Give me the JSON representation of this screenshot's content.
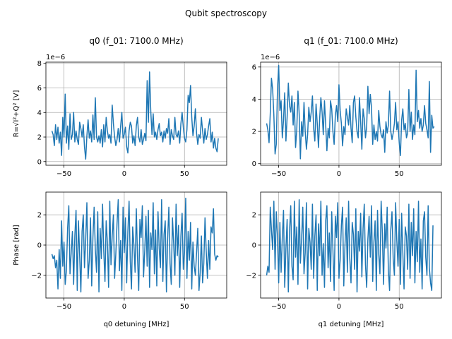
{
  "figure": {
    "title": "Qubit spectroscopy",
    "amplitude_ylabel": "R=√I²+Q² [V]",
    "phase_ylabel": "Phase [rad]"
  },
  "chart_data": [
    {
      "type": "line",
      "title": "q0 (f_01: 7100.0 MHz)",
      "xlabel": "",
      "ylabel": "R=√I²+Q² [V]",
      "offset_text": "1e−6",
      "grid": true,
      "xlim": [
        -65,
        85
      ],
      "ylim": [
        -0.3,
        8.1
      ],
      "xticks": [
        -50,
        0,
        50
      ],
      "yticks": [
        0,
        2,
        4,
        6,
        8
      ],
      "color": "#1f77b4",
      "x_start": -60,
      "x_step": 1,
      "values": [
        2.5,
        2.2,
        1.3,
        3.0,
        1.8,
        2.8,
        1.5,
        2.4,
        0.5,
        3.6,
        2.0,
        5.5,
        1.5,
        2.9,
        1.0,
        3.9,
        1.8,
        2.2,
        4.0,
        1.6,
        2.5,
        1.8,
        1.4,
        3.2,
        2.7,
        2.0,
        3.0,
        1.2,
        0.2,
        2.1,
        3.4,
        1.9,
        2.5,
        1.6,
        3.8,
        1.8,
        5.2,
        2.0,
        1.6,
        2.1,
        1.5,
        2.6,
        1.2,
        3.0,
        1.6,
        3.6,
        2.5,
        1.9,
        2.2,
        1.5,
        4.6,
        3.1,
        2.0,
        1.3,
        1.8,
        2.7,
        1.6,
        2.9,
        4.0,
        1.9,
        2.2,
        2.8,
        1.2,
        0.7,
        2.5,
        3.2,
        2.9,
        1.5,
        2.1,
        1.3,
        2.9,
        3.6,
        2.0,
        1.6,
        2.6,
        1.4,
        1.8,
        2.3,
        1.7,
        6.6,
        3.2,
        7.3,
        4.1,
        2.2,
        3.9,
        2.0,
        2.4,
        1.8,
        2.6,
        3.1,
        2.1,
        2.4,
        1.6,
        2.5,
        1.9,
        2.7,
        2.3,
        3.5,
        1.4,
        2.6,
        2.1,
        1.8,
        3.6,
        2.2,
        2.0,
        2.5,
        1.5,
        3.1,
        4.0,
        2.8,
        1.9,
        1.6,
        2.6,
        5.4,
        4.8,
        6.2,
        3.6,
        2.1,
        2.9,
        4.3,
        2.3,
        1.4,
        2.2,
        1.9,
        3.6,
        2.5,
        1.5,
        2.7,
        1.8,
        2.2,
        2.9,
        3.5,
        1.6,
        2.4,
        1.1,
        1.9,
        1.1,
        0.8,
        1.9
      ]
    },
    {
      "type": "line",
      "title": "q1 (f_01: 7100.0 MHz)",
      "xlabel": "",
      "ylabel": "",
      "offset_text": "1e−6",
      "grid": true,
      "xlim": [
        -65,
        85
      ],
      "ylim": [
        -0.1,
        6.3
      ],
      "xticks": [
        -50,
        0,
        50
      ],
      "yticks": [
        0,
        2,
        4,
        6
      ],
      "color": "#1f77b4",
      "x_start": -60,
      "x_step": 1,
      "values": [
        2.5,
        2.1,
        1.3,
        3.1,
        5.3,
        4.6,
        3.0,
        0.6,
        1.2,
        4.6,
        6.1,
        3.3,
        3.9,
        1.6,
        2.7,
        4.4,
        1.4,
        2.9,
        5.0,
        3.6,
        3.2,
        4.2,
        2.4,
        3.8,
        1.0,
        2.1,
        4.5,
        3.1,
        0.3,
        2.6,
        1.7,
        3.8,
        2.0,
        0.9,
        1.8,
        3.5,
        2.6,
        3.2,
        4.2,
        2.2,
        1.4,
        3.7,
        2.5,
        1.0,
        2.8,
        4.1,
        3.2,
        1.8,
        3.9,
        2.4,
        0.8,
        2.2,
        1.6,
        3.9,
        3.4,
        2.0,
        1.2,
        3.0,
        3.6,
        2.6,
        4.9,
        3.3,
        2.5,
        1.1,
        2.3,
        1.8,
        3.4,
        2.9,
        2.4,
        3.6,
        2.2,
        1.3,
        3.8,
        4.2,
        2.9,
        2.0,
        1.6,
        4.1,
        2.6,
        0.9,
        3.4,
        2.8,
        1.6,
        2.3,
        4.8,
        3.1,
        4.3,
        3.5,
        1.2,
        2.4,
        1.5,
        2.0,
        1.4,
        3.3,
        2.3,
        1.8,
        1.6,
        2.1,
        0.7,
        2.6,
        1.9,
        2.4,
        4.5,
        2.0,
        1.5,
        1.9,
        2.5,
        3.8,
        2.1,
        2.6,
        1.3,
        0.5,
        2.7,
        3.4,
        2.1,
        2.5,
        1.6,
        1.9,
        4.6,
        2.0,
        3.2,
        1.5,
        2.4,
        1.8,
        5.8,
        2.6,
        3.3,
        2.2,
        2.8,
        2.0,
        2.4,
        3.6,
        2.5,
        2.1,
        1.6,
        5.1,
        0.7,
        3.0,
        2.2,
        2.3
      ]
    },
    {
      "type": "line",
      "title": "",
      "xlabel": "q0 detuning [MHz]",
      "ylabel": "Phase [rad]",
      "grid": true,
      "xlim": [
        -65,
        85
      ],
      "ylim": [
        -3.5,
        3.5
      ],
      "xticks": [
        -50,
        0,
        50
      ],
      "yticks": [
        -2,
        0,
        2
      ],
      "color": "#1f77b4",
      "x_start": -60,
      "x_step": 1,
      "values": [
        -0.6,
        -0.9,
        -0.7,
        -1.5,
        -1.0,
        -2.9,
        -0.3,
        -2.2,
        1.6,
        -1.4,
        0.2,
        -2.6,
        -1.7,
        1.1,
        2.6,
        -1.9,
        -0.5,
        0.9,
        -2.6,
        0.6,
        2.3,
        -3.0,
        1.6,
        -0.7,
        -3.1,
        0.9,
        2.0,
        -1.5,
        0.3,
        2.8,
        -2.2,
        -1.0,
        1.8,
        -2.7,
        0.5,
        2.5,
        -0.3,
        -1.8,
        2.2,
        -3.1,
        1.1,
        -0.9,
        2.7,
        -0.4,
        -2.4,
        1.6,
        0.2,
        -2.8,
        2.9,
        -1.3,
        0.6,
        2.0,
        -2.2,
        -0.6,
        1.4,
        3.0,
        -1.7,
        0.3,
        -3.0,
        2.5,
        -0.5,
        1.8,
        -2.5,
        0.9,
        2.9,
        -1.1,
        -2.9,
        1.2,
        0.0,
        -1.8,
        2.4,
        -0.8,
        -3.0,
        1.7,
        0.5,
        2.6,
        -2.1,
        -0.4,
        1.9,
        -1.4,
        2.3,
        -2.8,
        0.8,
        -0.3,
        2.8,
        -1.9,
        1.0,
        -2.7,
        2.2,
        -0.2,
        -1.5,
        3.0,
        -2.4,
        0.7,
        1.6,
        -3.1,
        0.4,
        2.5,
        -1.2,
        -2.6,
        1.8,
        0.1,
        -2.0,
        2.7,
        -0.7,
        1.3,
        -2.8,
        0.6,
        2.1,
        -1.6,
        -0.5,
        3.1,
        -2.2,
        0.9,
        -1.0,
        1.5,
        -2.9,
        0.2,
        -1.4,
        -2.0,
        -0.5,
        1.1,
        -3.0,
        -1.8,
        0.6,
        -2.5,
        -1.2,
        1.8,
        -0.4,
        -2.2,
        0.3,
        -1.6,
        1.2,
        0.8,
        2.4,
        -0.6,
        -1.0,
        -0.7,
        -0.8
      ]
    },
    {
      "type": "line",
      "title": "",
      "xlabel": "q1 detuning [MHz]",
      "ylabel": "",
      "grid": true,
      "xlim": [
        -65,
        85
      ],
      "ylim": [
        -3.5,
        3.5
      ],
      "xticks": [
        -50,
        0,
        50
      ],
      "yticks": [
        -2,
        0,
        2
      ],
      "color": "#1f77b4",
      "x_start": -60,
      "x_step": 1,
      "values": [
        -2.0,
        -1.4,
        -1.8,
        2.5,
        1.0,
        -0.3,
        2.9,
        -1.6,
        2.2,
        0.6,
        -2.5,
        1.5,
        -1.8,
        0.5,
        2.3,
        -2.8,
        -0.2,
        1.7,
        -3.1,
        0.9,
        2.6,
        -1.4,
        -2.3,
        2.9,
        -0.8,
        1.2,
        -2.6,
        3.0,
        -1.2,
        0.4,
        2.5,
        -1.9,
        -0.5,
        2.8,
        -2.9,
        1.1,
        0.2,
        -1.6,
        2.7,
        -2.2,
        0.6,
        2.0,
        -3.0,
        1.4,
        -0.7,
        2.9,
        -2.0,
        0.1,
        -2.8,
        1.6,
        2.6,
        -1.5,
        0.8,
        -2.4,
        2.2,
        -0.3,
        -3.0,
        1.9,
        0.5,
        2.8,
        -2.2,
        -1.0,
        1.3,
        2.5,
        -2.7,
        0.0,
        1.8,
        -1.8,
        2.9,
        -0.9,
        -2.5,
        1.5,
        0.7,
        -1.6,
        2.4,
        -3.1,
        0.9,
        -0.4,
        2.1,
        -2.1,
        1.1,
        2.7,
        -1.3,
        -2.8,
        0.4,
        1.9,
        -0.8,
        2.6,
        -2.4,
        0.2,
        1.6,
        -3.0,
        2.3,
        -0.6,
        -1.9,
        2.9,
        0.8,
        -2.6,
        1.4,
        -0.2,
        2.5,
        -1.7,
        -3.0,
        1.0,
        2.2,
        -0.9,
        -2.0,
        2.8,
        0.3,
        -1.4,
        1.7,
        -2.6,
        2.1,
        -0.5,
        -2.9,
        1.2,
        0.6,
        -1.6,
        2.7,
        -2.2,
        1.5,
        -0.7,
        2.4,
        -2.5,
        0.9,
        -1.1,
        2.9,
        -1.8,
        0.4,
        -2.9,
        1.6,
        2.2,
        -0.8,
        -2.0,
        2.6,
        -1.5,
        -2.5,
        -3.0,
        1.3
      ]
    }
  ]
}
